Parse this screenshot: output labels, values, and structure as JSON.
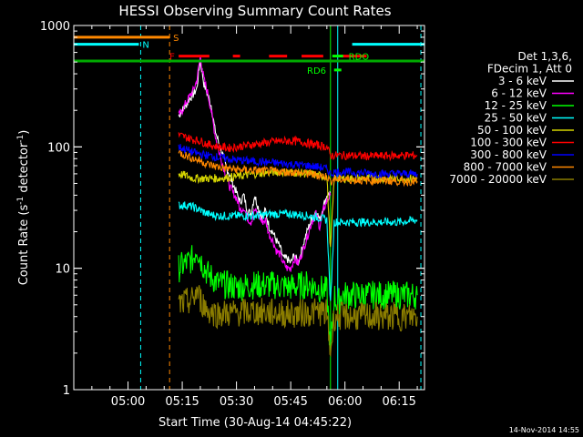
{
  "chart_data": {
    "type": "line",
    "title": "HESSI Observing Summary Count Rates",
    "xlabel": "Start Time (30-Aug-14 04:45:22)",
    "ylabel": "Count Rate (s",
    "ylabel_sup1": "-1",
    "ylabel_mid": " detector",
    "ylabel_sup2": "-1",
    "ylabel_end": ")",
    "y_scale": "log",
    "ylim": [
      1,
      1000
    ],
    "xlim_minutes": [
      0,
      97
    ],
    "x_ticks": [
      {
        "label": "05:00",
        "minute": 15
      },
      {
        "label": "05:15",
        "minute": 30
      },
      {
        "label": "05:30",
        "minute": 45
      },
      {
        "label": "05:45",
        "minute": 60
      },
      {
        "label": "06:00",
        "minute": 75
      },
      {
        "label": "06:15",
        "minute": 90
      }
    ],
    "y_ticks": [
      {
        "label": "1",
        "value": 1
      },
      {
        "label": "10",
        "value": 10
      },
      {
        "label": "100",
        "value": 100
      },
      {
        "label": "1000",
        "value": 1000
      }
    ],
    "legend_header": [
      "Det 1,3,6,",
      "FDecim 1, Att 0"
    ],
    "series": [
      {
        "name": "3 - 6 keV",
        "color": "#ffffff",
        "points": [
          [
            29,
            180
          ],
          [
            30,
            200
          ],
          [
            31,
            220
          ],
          [
            32,
            250
          ],
          [
            33,
            270
          ],
          [
            34,
            300
          ],
          [
            35,
            520
          ],
          [
            36,
            330
          ],
          [
            37,
            270
          ],
          [
            38,
            220
          ],
          [
            39,
            140
          ],
          [
            40,
            110
          ],
          [
            41,
            90
          ],
          [
            42,
            70
          ],
          [
            43,
            60
          ],
          [
            44,
            50
          ],
          [
            45,
            42
          ],
          [
            46,
            35
          ],
          [
            47,
            40
          ],
          [
            48,
            30
          ],
          [
            49,
            28
          ],
          [
            50,
            40
          ],
          [
            51,
            32
          ],
          [
            52,
            26
          ],
          [
            53,
            30
          ],
          [
            54,
            22
          ],
          [
            55,
            20
          ],
          [
            56,
            17
          ],
          [
            57,
            15
          ],
          [
            58,
            12
          ],
          [
            59,
            12
          ],
          [
            60,
            11
          ],
          [
            61,
            13
          ],
          [
            62,
            11
          ],
          [
            63,
            14
          ],
          [
            64,
            18
          ],
          [
            65,
            22
          ],
          [
            66,
            26
          ],
          [
            67,
            30
          ],
          [
            68,
            25
          ],
          [
            69,
            32
          ],
          [
            70,
            40
          ],
          [
            71,
            42
          ]
        ]
      },
      {
        "name": "6 - 12 keV",
        "color": "#ff00ff",
        "points": [
          [
            29,
            180
          ],
          [
            30,
            200
          ],
          [
            31,
            230
          ],
          [
            32,
            260
          ],
          [
            33,
            290
          ],
          [
            34,
            350
          ],
          [
            35,
            560
          ],
          [
            36,
            360
          ],
          [
            37,
            280
          ],
          [
            38,
            200
          ],
          [
            39,
            130
          ],
          [
            40,
            95
          ],
          [
            41,
            75
          ],
          [
            42,
            60
          ],
          [
            43,
            48
          ],
          [
            44,
            42
          ],
          [
            45,
            38
          ],
          [
            46,
            30
          ],
          [
            47,
            32
          ],
          [
            48,
            26
          ],
          [
            49,
            24
          ],
          [
            50,
            30
          ],
          [
            51,
            28
          ],
          [
            52,
            24
          ],
          [
            53,
            25
          ],
          [
            54,
            19
          ],
          [
            55,
            17
          ],
          [
            56,
            14
          ],
          [
            57,
            13
          ],
          [
            58,
            11
          ],
          [
            59,
            10
          ],
          [
            60,
            10
          ],
          [
            61,
            12
          ],
          [
            62,
            11
          ],
          [
            63,
            13
          ],
          [
            64,
            16
          ],
          [
            65,
            20
          ],
          [
            66,
            25
          ],
          [
            67,
            28
          ],
          [
            68,
            22
          ],
          [
            69,
            30
          ],
          [
            70,
            36
          ],
          [
            71,
            40
          ]
        ]
      },
      {
        "name": "12 - 25 keV",
        "color": "#00ff00",
        "points": [
          [
            29,
            10
          ],
          [
            31,
            11
          ],
          [
            33,
            12
          ],
          [
            34,
            15
          ],
          [
            35,
            12
          ],
          [
            37,
            9
          ],
          [
            40,
            7.5
          ],
          [
            45,
            7
          ],
          [
            50,
            7.3
          ],
          [
            55,
            7.3
          ],
          [
            60,
            7
          ],
          [
            65,
            7.4
          ],
          [
            68,
            6.8
          ],
          [
            70,
            6.5
          ],
          [
            71,
            2
          ],
          [
            72,
            6
          ],
          [
            73,
            5
          ],
          [
            74,
            6
          ],
          [
            76,
            6
          ],
          [
            80,
            6
          ],
          [
            85,
            6
          ],
          [
            90,
            6
          ],
          [
            95,
            6
          ]
        ]
      },
      {
        "name": "25 - 50 keV",
        "color": "#00ffff",
        "points": [
          [
            29,
            33
          ],
          [
            31,
            33
          ],
          [
            33,
            32
          ],
          [
            35,
            30
          ],
          [
            37,
            28
          ],
          [
            40,
            27
          ],
          [
            45,
            27
          ],
          [
            50,
            27
          ],
          [
            55,
            28
          ],
          [
            60,
            28
          ],
          [
            65,
            27
          ],
          [
            68,
            26
          ],
          [
            70,
            25
          ],
          [
            71,
            5
          ],
          [
            72,
            24
          ],
          [
            74,
            24
          ],
          [
            76,
            24
          ],
          [
            80,
            24
          ],
          [
            85,
            24
          ],
          [
            90,
            24
          ],
          [
            95,
            25
          ]
        ]
      },
      {
        "name": "50 - 100 keV",
        "color": "#d6d600",
        "points": [
          [
            29,
            60
          ],
          [
            31,
            58
          ],
          [
            33,
            55
          ],
          [
            35,
            55
          ],
          [
            37,
            55
          ],
          [
            40,
            55
          ],
          [
            45,
            57
          ],
          [
            50,
            60
          ],
          [
            55,
            62
          ],
          [
            60,
            62
          ],
          [
            65,
            60
          ],
          [
            68,
            58
          ],
          [
            70,
            57
          ],
          [
            71,
            14
          ],
          [
            72,
            55
          ],
          [
            75,
            55
          ],
          [
            80,
            55
          ],
          [
            85,
            55
          ],
          [
            90,
            55
          ],
          [
            95,
            55
          ]
        ]
      },
      {
        "name": "100 - 300 keV",
        "color": "#ff0000",
        "points": [
          [
            29,
            125
          ],
          [
            31,
            120
          ],
          [
            33,
            115
          ],
          [
            35,
            112
          ],
          [
            37,
            105
          ],
          [
            40,
            100
          ],
          [
            43,
            98
          ],
          [
            45,
            100
          ],
          [
            48,
            103
          ],
          [
            52,
            107
          ],
          [
            56,
            111
          ],
          [
            60,
            112
          ],
          [
            63,
            110
          ],
          [
            66,
            105
          ],
          [
            70,
            100
          ],
          [
            71,
            85
          ],
          [
            72,
            85
          ],
          [
            75,
            85
          ],
          [
            80,
            84
          ],
          [
            85,
            84
          ],
          [
            90,
            85
          ],
          [
            95,
            85
          ]
        ]
      },
      {
        "name": "300 - 800 keV",
        "color": "#0000ff",
        "points": [
          [
            29,
            100
          ],
          [
            31,
            95
          ],
          [
            33,
            90
          ],
          [
            35,
            87
          ],
          [
            37,
            85
          ],
          [
            40,
            82
          ],
          [
            45,
            78
          ],
          [
            50,
            76
          ],
          [
            55,
            74
          ],
          [
            60,
            72
          ],
          [
            65,
            70
          ],
          [
            68,
            68
          ],
          [
            70,
            66
          ],
          [
            71,
            60
          ],
          [
            72,
            62
          ],
          [
            75,
            62
          ],
          [
            80,
            61
          ],
          [
            85,
            60
          ],
          [
            90,
            60
          ],
          [
            95,
            60
          ]
        ]
      },
      {
        "name": "800 - 7000 keV",
        "color": "#ff8800",
        "points": [
          [
            29,
            90
          ],
          [
            31,
            85
          ],
          [
            33,
            80
          ],
          [
            35,
            77
          ],
          [
            37,
            72
          ],
          [
            40,
            68
          ],
          [
            45,
            65
          ],
          [
            50,
            64
          ],
          [
            55,
            63
          ],
          [
            60,
            62
          ],
          [
            65,
            60
          ],
          [
            68,
            58
          ],
          [
            70,
            57
          ],
          [
            71,
            52
          ],
          [
            72,
            54
          ],
          [
            75,
            54
          ],
          [
            80,
            53
          ],
          [
            85,
            53
          ],
          [
            90,
            52
          ],
          [
            95,
            52
          ]
        ]
      },
      {
        "name": "7000 - 20000 keV",
        "color": "#8b7d00",
        "points": [
          [
            29,
            5
          ],
          [
            31,
            5.2
          ],
          [
            33,
            5.5
          ],
          [
            34,
            6.5
          ],
          [
            35,
            5.5
          ],
          [
            37,
            4.5
          ],
          [
            40,
            4.2
          ],
          [
            45,
            4.3
          ],
          [
            50,
            4.4
          ],
          [
            55,
            4.3
          ],
          [
            60,
            4.2
          ],
          [
            65,
            4.3
          ],
          [
            68,
            4.4
          ],
          [
            70,
            4.2
          ],
          [
            71,
            2
          ],
          [
            72,
            4
          ],
          [
            75,
            4
          ],
          [
            80,
            4
          ],
          [
            85,
            4
          ],
          [
            90,
            4
          ],
          [
            95,
            4
          ]
        ]
      }
    ],
    "vertical_markers": [
      {
        "minute": 0,
        "color": "#00ffff",
        "style": "solid"
      },
      {
        "minute": 18.5,
        "color": "#00ffff",
        "style": "dashed"
      },
      {
        "minute": 26.5,
        "color": "#ff8800",
        "style": "dashed"
      },
      {
        "minute": 71,
        "color": "#00ff00",
        "style": "solid"
      },
      {
        "minute": 73,
        "color": "#00ffff",
        "style": "solid"
      },
      {
        "minute": 96,
        "color": "#00ffff",
        "style": "dashed"
      }
    ],
    "flag_bars": [
      {
        "label": "S",
        "color": "#ff8800",
        "value": 800,
        "segments": [
          [
            0,
            26.5
          ]
        ],
        "label_minute": 27.5
      },
      {
        "label": "N",
        "color": "#00ffff",
        "value": 700,
        "segments": [
          [
            0,
            18
          ],
          [
            77,
            97
          ]
        ],
        "label_minute": 19
      },
      {
        "label": "F",
        "color": "#ff0000",
        "value": 560,
        "segments": [
          [
            29,
            37.5
          ],
          [
            44,
            46
          ],
          [
            54,
            59
          ],
          [
            63,
            69
          ],
          [
            74,
            81
          ]
        ],
        "label_minute": 26.5
      },
      {
        "label": "RDO",
        "color": "#00ff00",
        "value": 560,
        "segments": [
          [
            71.5,
            74.5
          ]
        ],
        "label_minute": 76
      },
      {
        "label": "RD6",
        "color": "#00ff00",
        "value": 430,
        "segments": [
          [
            72,
            74
          ]
        ],
        "label_minute": 64.5
      },
      {
        "label": "",
        "color": "#00aa00",
        "value": 510,
        "segments": [
          [
            0,
            97
          ]
        ],
        "label_minute": 0
      }
    ]
  },
  "timestamp": "14-Nov-2014 14:55"
}
